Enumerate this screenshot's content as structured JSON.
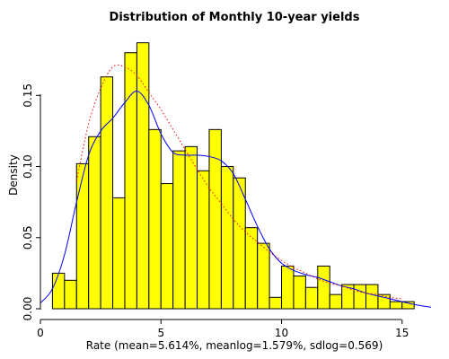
{
  "chart_data": {
    "type": "bar",
    "title": "Distribution of Monthly 10-year yields",
    "xlabel": "Rate (mean=5.614%, meanlog=1.579%, sdlog=0.569)",
    "ylabel": "Density",
    "xlim": [
      0,
      16.2
    ],
    "ylim": [
      0,
      0.195
    ],
    "x_ticks": [
      0,
      5,
      10,
      15
    ],
    "y_ticks": [
      0.0,
      0.05,
      0.1,
      0.15
    ],
    "x_tick_labels": [
      "0",
      "5",
      "10",
      "15"
    ],
    "y_tick_labels": [
      "0.00",
      "0.05",
      "0.10",
      "0.15"
    ],
    "bar_color": "#ffff00",
    "bin_width": 0.5,
    "bins": [
      {
        "x0": 0.5,
        "value": 0.025
      },
      {
        "x0": 1.0,
        "value": 0.02
      },
      {
        "x0": 1.5,
        "value": 0.102
      },
      {
        "x0": 2.0,
        "value": 0.121
      },
      {
        "x0": 2.5,
        "value": 0.163
      },
      {
        "x0": 3.0,
        "value": 0.078
      },
      {
        "x0": 3.5,
        "value": 0.18
      },
      {
        "x0": 4.0,
        "value": 0.187
      },
      {
        "x0": 4.5,
        "value": 0.126
      },
      {
        "x0": 5.0,
        "value": 0.088
      },
      {
        "x0": 5.5,
        "value": 0.111
      },
      {
        "x0": 6.0,
        "value": 0.114
      },
      {
        "x0": 6.5,
        "value": 0.097
      },
      {
        "x0": 7.0,
        "value": 0.126
      },
      {
        "x0": 7.5,
        "value": 0.1
      },
      {
        "x0": 8.0,
        "value": 0.092
      },
      {
        "x0": 8.5,
        "value": 0.057
      },
      {
        "x0": 9.0,
        "value": 0.046
      },
      {
        "x0": 9.5,
        "value": 0.008
      },
      {
        "x0": 10.0,
        "value": 0.03
      },
      {
        "x0": 10.5,
        "value": 0.023
      },
      {
        "x0": 11.0,
        "value": 0.015
      },
      {
        "x0": 11.5,
        "value": 0.03
      },
      {
        "x0": 12.0,
        "value": 0.01
      },
      {
        "x0": 12.5,
        "value": 0.017
      },
      {
        "x0": 13.0,
        "value": 0.017
      },
      {
        "x0": 13.5,
        "value": 0.017
      },
      {
        "x0": 14.0,
        "value": 0.01
      },
      {
        "x0": 14.5,
        "value": 0.005
      },
      {
        "x0": 15.0,
        "value": 0.005
      }
    ],
    "series": [
      {
        "type": "density",
        "color": "#0000ff",
        "style": "solid",
        "x": [
          0.0,
          0.5,
          1.0,
          1.5,
          2.0,
          2.5,
          3.0,
          3.5,
          4.0,
          4.5,
          5.0,
          5.5,
          6.0,
          6.5,
          7.0,
          7.5,
          8.0,
          8.5,
          9.0,
          9.5,
          10.0,
          10.5,
          11.0,
          11.5,
          12.0,
          12.5,
          13.0,
          13.5,
          14.0,
          14.5,
          15.0,
          15.5,
          16.2
        ],
        "y": [
          0.004,
          0.014,
          0.038,
          0.075,
          0.108,
          0.125,
          0.134,
          0.145,
          0.153,
          0.143,
          0.123,
          0.11,
          0.108,
          0.108,
          0.107,
          0.104,
          0.095,
          0.077,
          0.058,
          0.042,
          0.032,
          0.027,
          0.024,
          0.022,
          0.019,
          0.016,
          0.014,
          0.011,
          0.009,
          0.007,
          0.005,
          0.003,
          0.001
        ]
      },
      {
        "type": "lognormal-fit",
        "color": "#ff0000",
        "style": "dotted",
        "x": [
          1.5,
          2.0,
          2.5,
          3.0,
          3.5,
          4.0,
          4.5,
          5.0,
          5.5,
          6.0,
          6.5,
          7.0,
          7.5,
          8.0,
          8.5,
          9.0,
          9.5,
          10.0,
          10.5,
          11.0,
          11.5,
          12.0,
          12.5,
          13.0,
          13.5,
          14.0,
          14.5,
          15.0
        ],
        "y": [
          0.09,
          0.13,
          0.155,
          0.17,
          0.17,
          0.164,
          0.152,
          0.14,
          0.126,
          0.112,
          0.098,
          0.085,
          0.074,
          0.063,
          0.054,
          0.047,
          0.04,
          0.034,
          0.029,
          0.025,
          0.021,
          0.018,
          0.016,
          0.013,
          0.011,
          0.01,
          0.008,
          0.007
        ]
      }
    ]
  }
}
